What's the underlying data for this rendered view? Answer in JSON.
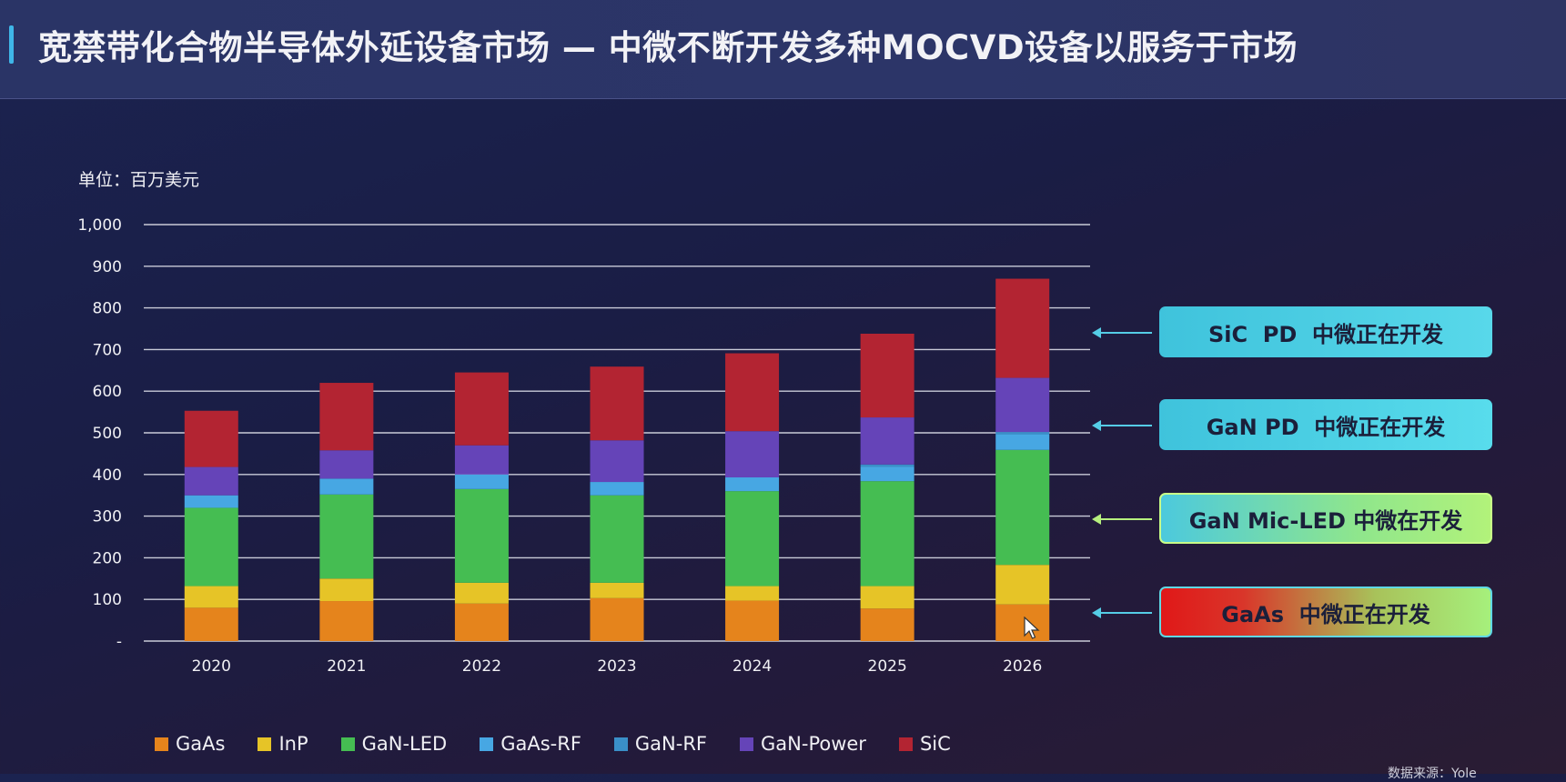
{
  "header": {
    "title": "宽禁带化合物半导体外延设备市场 — 中微不断开发多种MOCVD设备以服务于市场"
  },
  "chart_data": {
    "type": "bar",
    "stacked": true,
    "unit_label": "单位：百万美元",
    "categories": [
      "2020",
      "2021",
      "2022",
      "2023",
      "2024",
      "2025",
      "2026"
    ],
    "y_ticks": [
      "-",
      "100",
      "200",
      "300",
      "400",
      "500",
      "600",
      "700",
      "800",
      "900",
      "1,000"
    ],
    "ylim": [
      0,
      1000
    ],
    "grid": true,
    "legend_position": "bottom",
    "series": [
      {
        "name": "GaAs",
        "color": "#e5841c",
        "values": [
          80,
          96,
          90,
          103,
          97,
          78,
          88
        ]
      },
      {
        "name": "InP",
        "color": "#e6c427",
        "values": [
          52,
          54,
          50,
          37,
          35,
          54,
          95
        ]
      },
      {
        "name": "GaN-LED",
        "color": "#45bd52",
        "values": [
          188,
          202,
          225,
          210,
          228,
          252,
          276
        ]
      },
      {
        "name": "GaAs-RF",
        "color": "#47a7e3",
        "values": [
          30,
          38,
          35,
          32,
          33,
          35,
          38
        ]
      },
      {
        "name": "GaN-RF",
        "color": "#3a8fc8",
        "values": [
          0,
          0,
          0,
          0,
          0,
          5,
          5
        ]
      },
      {
        "name": "GaN-Power",
        "color": "#6544b8",
        "values": [
          68,
          68,
          70,
          100,
          111,
          113,
          130
        ]
      },
      {
        "name": "SiC",
        "color": "#b32432",
        "values": [
          135,
          162,
          175,
          177,
          187,
          201,
          238
        ]
      }
    ]
  },
  "callouts": [
    {
      "text": "SiC  PD  中微正在开发",
      "arrow_color": "#55cde6"
    },
    {
      "text": "GaN PD  中微正在开发",
      "arrow_color": "#55cde6"
    },
    {
      "text": "GaN Mic-LED 中微在开发",
      "arrow_color": "#b6f07e"
    },
    {
      "text": "GaAs  中微正在开发",
      "arrow_color": "#55cde6"
    }
  ],
  "source_note": "数据来源：Yole"
}
